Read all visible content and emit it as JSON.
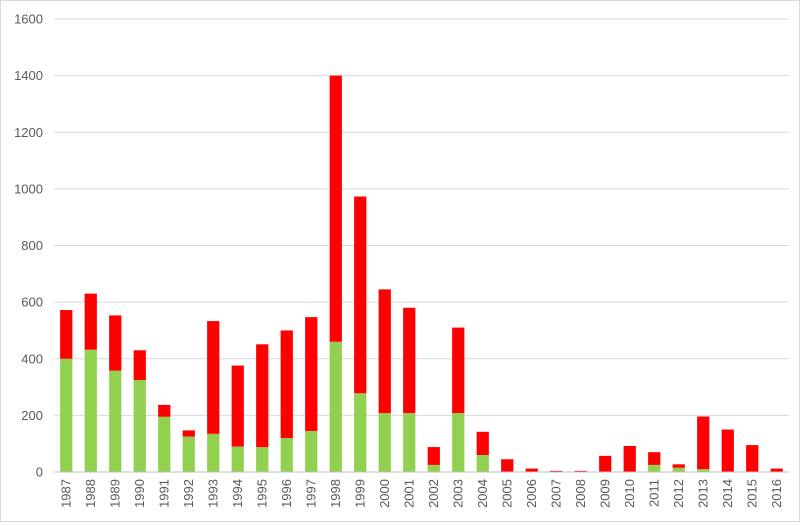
{
  "chart_data": {
    "type": "bar",
    "stacked": true,
    "categories": [
      "1987",
      "1988",
      "1989",
      "1990",
      "1991",
      "1992",
      "1993",
      "1994",
      "1995",
      "1996",
      "1997",
      "1998",
      "1999",
      "2000",
      "2001",
      "2002",
      "2003",
      "2004",
      "2005",
      "2006",
      "2007",
      "2008",
      "2009",
      "2010",
      "2011",
      "2012",
      "2013",
      "2014",
      "2015",
      "2016"
    ],
    "series": [
      {
        "color": "#92d050",
        "values": [
          400,
          432,
          358,
          325,
          195,
          125,
          135,
          90,
          88,
          120,
          145,
          460,
          278,
          208,
          208,
          25,
          208,
          60,
          0,
          0,
          0,
          0,
          0,
          0,
          25,
          15,
          10,
          0,
          0,
          0
        ]
      },
      {
        "color": "#ff0000",
        "values": [
          172,
          198,
          195,
          105,
          42,
          22,
          398,
          286,
          363,
          380,
          402,
          940,
          695,
          437,
          372,
          63,
          302,
          82,
          45,
          12,
          4,
          4,
          57,
          92,
          45,
          12,
          186,
          150,
          95,
          12
        ]
      }
    ],
    "title": "",
    "xlabel": "",
    "ylabel": "",
    "ylim": [
      0,
      1600
    ],
    "yticks": [
      0,
      200,
      400,
      600,
      800,
      1000,
      1200,
      1400,
      1600
    ],
    "grid": true,
    "legend": "none"
  }
}
